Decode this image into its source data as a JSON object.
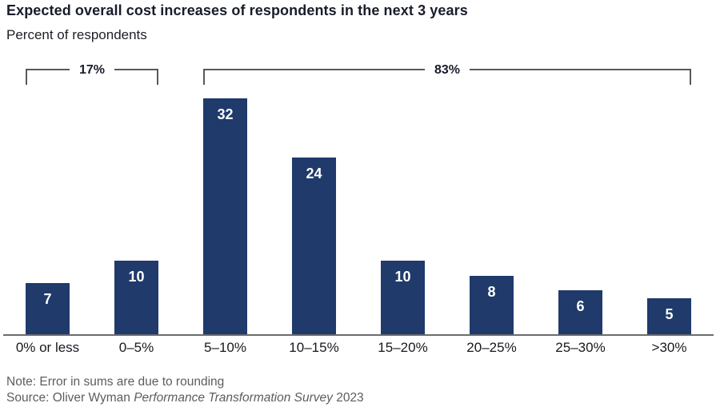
{
  "header": {
    "title": "Expected overall cost increases of respondents in the next 3 years",
    "subtitle": "Percent of respondents"
  },
  "chart_data": {
    "type": "bar",
    "title": "Expected overall cost increases of respondents in the next 3 years",
    "categories": [
      "0% or less",
      "0–5%",
      "5–10%",
      "10–15%",
      "15–20%",
      "20–25%",
      "25–30%",
      ">30%"
    ],
    "values": [
      7,
      10,
      32,
      24,
      10,
      8,
      6,
      5
    ],
    "xlabel": "",
    "ylabel": "Percent of respondents",
    "ylim": [
      0,
      32
    ],
    "grid": false,
    "legend": "none",
    "value_label_position": "inside-top",
    "bar_color": "#1f3a6b",
    "axis_color": "#6b6c6e",
    "annotations": [
      {
        "label": "17%",
        "from_index": 0,
        "to_index": 1
      },
      {
        "label": "83%",
        "from_index": 2,
        "to_index": 7
      }
    ]
  },
  "footer": {
    "note": "Note: Error in sums are due to rounding",
    "source_prefix": "Source: Oliver Wyman ",
    "source_italic": "Performance Transformation Survey",
    "source_suffix": " 2023"
  }
}
